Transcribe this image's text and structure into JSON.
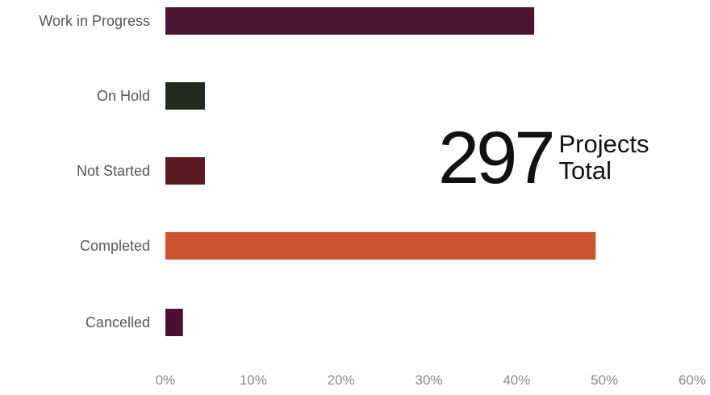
{
  "chart_data": {
    "type": "bar",
    "orientation": "horizontal",
    "categories": [
      "Work in Progress",
      "On Hold",
      "Not Started",
      "Completed",
      "Cancelled"
    ],
    "values": [
      42,
      4.5,
      4.5,
      49,
      2
    ],
    "colors": [
      "#4a1530",
      "#23291d",
      "#5c1a22",
      "#cc5230",
      "#4a1030"
    ],
    "xlim": [
      0,
      60
    ],
    "x_ticks": [
      "0%",
      "10%",
      "20%",
      "30%",
      "40%",
      "50%",
      "60%"
    ],
    "x_tick_values": [
      0,
      10,
      20,
      30,
      40,
      50,
      60
    ],
    "grid": false,
    "legend": "none"
  },
  "kpi": {
    "number": "297",
    "line1": "Projects",
    "line2": "Total"
  }
}
